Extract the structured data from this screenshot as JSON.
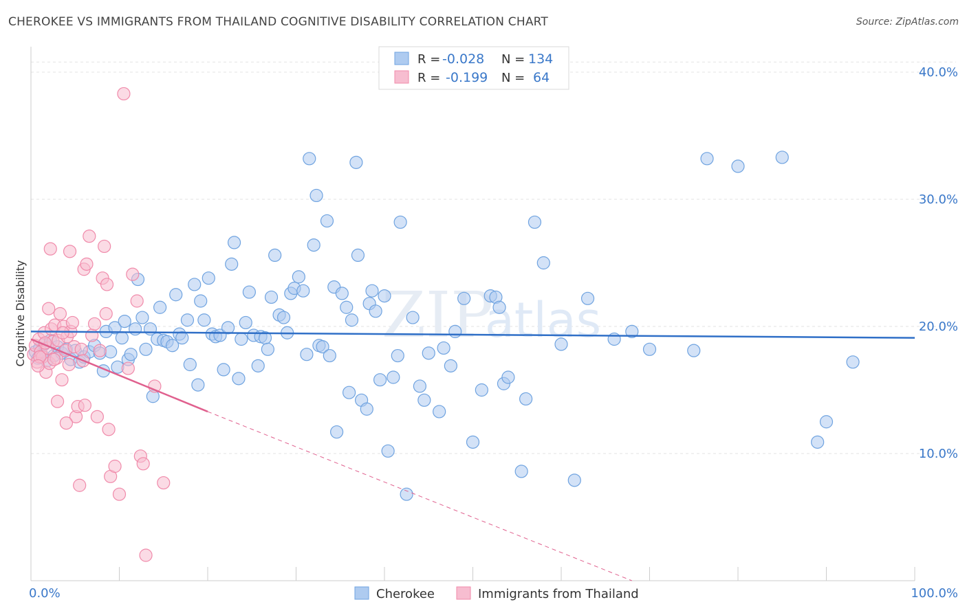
{
  "title": "CHEROKEE VS IMMIGRANTS FROM THAILAND COGNITIVE DISABILITY CORRELATION CHART",
  "source": "Source: ZipAtlas.com",
  "watermark": {
    "zip": "ZIP",
    "atlas": "atlas"
  },
  "chart_data": {
    "type": "scatter",
    "ylabel": "Cognitive Disability",
    "xlim": [
      0,
      100
    ],
    "ylim": [
      0,
      42
    ],
    "x_tick_labels": [
      "0.0%",
      "100.0%"
    ],
    "y_ticks": [
      10,
      20,
      30,
      40
    ],
    "y_tick_labels": [
      "10.0%",
      "20.0%",
      "30.0%",
      "40.0%"
    ],
    "grid": true,
    "legend_top": {
      "rows": [
        {
          "r_label": "R =",
          "r_value": "-0.028",
          "n_label": "N =",
          "n_value": "134"
        },
        {
          "r_label": "R =",
          "r_value": "-0.199",
          "n_label": "N =",
          "n_value": "64"
        }
      ]
    },
    "series": [
      {
        "name": "Cherokee",
        "color": "#6fa3e0",
        "fill": "#aecbf0",
        "line_color": "#2f6fc7",
        "trend": {
          "x": [
            0,
            100
          ],
          "y": [
            19.6,
            19.1
          ]
        },
        "points": [
          [
            0.5,
            18
          ],
          [
            0.8,
            17.5
          ],
          [
            1.0,
            18.3
          ],
          [
            1.2,
            17.8
          ],
          [
            1.5,
            18.6
          ],
          [
            1.8,
            17.3
          ],
          [
            2.2,
            18.9
          ],
          [
            2.6,
            17.7
          ],
          [
            3.0,
            18.4
          ],
          [
            3.5,
            17.9
          ],
          [
            4.0,
            18.2
          ],
          [
            4.5,
            17.4
          ],
          [
            5.0,
            18.1
          ],
          [
            5.5,
            17.2
          ],
          [
            6.0,
            17.6
          ],
          [
            6.6,
            18.0
          ],
          [
            7.2,
            18.5
          ],
          [
            7.8,
            17.9
          ],
          [
            8.2,
            16.5
          ],
          [
            8.5,
            19.6
          ],
          [
            9.0,
            18.0
          ],
          [
            9.5,
            19.9
          ],
          [
            9.8,
            16.8
          ],
          [
            10.3,
            19.1
          ],
          [
            10.6,
            20.4
          ],
          [
            11.0,
            17.4
          ],
          [
            11.3,
            17.8
          ],
          [
            11.8,
            19.8
          ],
          [
            12.1,
            23.7
          ],
          [
            12.6,
            20.7
          ],
          [
            13.0,
            18.2
          ],
          [
            13.5,
            19.8
          ],
          [
            13.8,
            14.5
          ],
          [
            14.3,
            19.0
          ],
          [
            14.6,
            21.5
          ],
          [
            15.0,
            18.9
          ],
          [
            15.4,
            18.8
          ],
          [
            16.0,
            18.5
          ],
          [
            16.4,
            22.5
          ],
          [
            16.8,
            19.4
          ],
          [
            17.1,
            19.1
          ],
          [
            17.7,
            20.5
          ],
          [
            18.0,
            17.0
          ],
          [
            18.5,
            23.3
          ],
          [
            18.9,
            15.4
          ],
          [
            19.2,
            22.0
          ],
          [
            19.6,
            20.5
          ],
          [
            20.1,
            23.8
          ],
          [
            20.5,
            19.4
          ],
          [
            20.9,
            19.2
          ],
          [
            21.4,
            19.3
          ],
          [
            21.8,
            16.6
          ],
          [
            22.3,
            19.9
          ],
          [
            22.7,
            24.9
          ],
          [
            23.0,
            26.6
          ],
          [
            23.5,
            15.9
          ],
          [
            23.8,
            19.0
          ],
          [
            24.3,
            20.3
          ],
          [
            24.7,
            22.7
          ],
          [
            25.2,
            19.3
          ],
          [
            25.7,
            16.9
          ],
          [
            26.0,
            19.2
          ],
          [
            26.5,
            19.1
          ],
          [
            26.8,
            18.2
          ],
          [
            27.2,
            22.3
          ],
          [
            27.6,
            25.6
          ],
          [
            28.1,
            20.9
          ],
          [
            28.6,
            20.7
          ],
          [
            29.0,
            19.5
          ],
          [
            29.4,
            22.6
          ],
          [
            29.8,
            23.0
          ],
          [
            30.3,
            23.9
          ],
          [
            30.8,
            22.8
          ],
          [
            31.2,
            17.8
          ],
          [
            31.5,
            33.2
          ],
          [
            32.0,
            26.4
          ],
          [
            32.6,
            18.5
          ],
          [
            33.0,
            18.4
          ],
          [
            33.5,
            28.3
          ],
          [
            33.8,
            17.7
          ],
          [
            34.3,
            23.1
          ],
          [
            34.6,
            11.7
          ],
          [
            35.2,
            22.6
          ],
          [
            35.7,
            21.5
          ],
          [
            36.0,
            14.8
          ],
          [
            36.3,
            20.5
          ],
          [
            37.0,
            25.6
          ],
          [
            37.4,
            14.2
          ],
          [
            38.0,
            13.5
          ],
          [
            38.3,
            21.8
          ],
          [
            38.6,
            22.8
          ],
          [
            39.0,
            21.2
          ],
          [
            39.5,
            15.8
          ],
          [
            40.0,
            22.4
          ],
          [
            40.4,
            10.2
          ],
          [
            41.0,
            16.0
          ],
          [
            41.5,
            17.7
          ],
          [
            41.8,
            28.2
          ],
          [
            42.5,
            6.8
          ],
          [
            43.2,
            20.7
          ],
          [
            44.0,
            15.3
          ],
          [
            44.5,
            14.2
          ],
          [
            45.0,
            17.9
          ],
          [
            46.2,
            13.3
          ],
          [
            46.7,
            18.3
          ],
          [
            47.5,
            16.9
          ],
          [
            48.0,
            19.6
          ],
          [
            49.0,
            22.2
          ],
          [
            50.0,
            10.9
          ],
          [
            51.0,
            15.0
          ],
          [
            52.0,
            22.4
          ],
          [
            52.6,
            22.3
          ],
          [
            53.0,
            21.5
          ],
          [
            53.5,
            15.5
          ],
          [
            54.0,
            16.0
          ],
          [
            55.5,
            8.6
          ],
          [
            56.0,
            14.3
          ],
          [
            57.0,
            28.2
          ],
          [
            58.0,
            25.0
          ],
          [
            60.0,
            18.6
          ],
          [
            61.5,
            7.9
          ],
          [
            63.0,
            22.2
          ],
          [
            66.0,
            19.0
          ],
          [
            68.0,
            19.6
          ],
          [
            70.0,
            18.2
          ],
          [
            75.0,
            18.1
          ],
          [
            76.5,
            33.2
          ],
          [
            80.0,
            32.6
          ],
          [
            85.0,
            33.3
          ],
          [
            89.0,
            10.9
          ],
          [
            90.0,
            12.5
          ],
          [
            93.0,
            17.2
          ],
          [
            36.8,
            32.9
          ],
          [
            32.3,
            30.3
          ]
        ]
      },
      {
        "name": "Immigrants from Thailand",
        "color": "#f08aaa",
        "fill": "#f7bdd0",
        "line_color": "#e0608e",
        "trend": {
          "x": [
            0,
            20
          ],
          "y": [
            19.0,
            13.3
          ]
        },
        "trend_dashed": {
          "x": [
            20,
            68
          ],
          "y": [
            13.3,
            0
          ]
        },
        "points": [
          [
            0.3,
            17.8
          ],
          [
            0.5,
            18.5
          ],
          [
            0.7,
            17.2
          ],
          [
            0.9,
            19.0
          ],
          [
            1.1,
            18.0
          ],
          [
            1.3,
            17.6
          ],
          [
            1.5,
            19.5
          ],
          [
            1.7,
            16.4
          ],
          [
            1.9,
            18.3
          ],
          [
            2.1,
            17.1
          ],
          [
            2.3,
            19.8
          ],
          [
            2.5,
            18.8
          ],
          [
            2.7,
            20.1
          ],
          [
            2.9,
            17.5
          ],
          [
            3.1,
            18.9
          ],
          [
            3.3,
            21.0
          ],
          [
            3.5,
            15.8
          ],
          [
            3.7,
            20.0
          ],
          [
            3.9,
            18.1
          ],
          [
            4.1,
            19.2
          ],
          [
            4.3,
            17.0
          ],
          [
            4.5,
            19.6
          ],
          [
            4.7,
            20.3
          ],
          [
            4.9,
            18.4
          ],
          [
            5.1,
            12.9
          ],
          [
            5.3,
            13.7
          ],
          [
            5.5,
            7.5
          ],
          [
            5.7,
            18.2
          ],
          [
            6.0,
            24.5
          ],
          [
            6.3,
            24.9
          ],
          [
            6.6,
            27.1
          ],
          [
            6.9,
            19.3
          ],
          [
            7.2,
            20.2
          ],
          [
            7.5,
            12.9
          ],
          [
            7.8,
            18.1
          ],
          [
            8.1,
            23.8
          ],
          [
            8.3,
            26.3
          ],
          [
            8.5,
            21.0
          ],
          [
            8.8,
            11.9
          ],
          [
            9.0,
            8.2
          ],
          [
            9.5,
            9.0
          ],
          [
            10.0,
            6.8
          ],
          [
            10.5,
            38.3
          ],
          [
            11.0,
            16.7
          ],
          [
            11.5,
            24.1
          ],
          [
            12.0,
            22.0
          ],
          [
            12.4,
            9.8
          ],
          [
            12.7,
            9.2
          ],
          [
            13.0,
            2.0
          ],
          [
            14.0,
            15.3
          ],
          [
            15.0,
            7.7
          ],
          [
            2.0,
            21.4
          ],
          [
            3.0,
            14.1
          ],
          [
            4.0,
            12.4
          ],
          [
            6.1,
            13.8
          ],
          [
            1.0,
            17.6
          ],
          [
            1.6,
            18.7
          ],
          [
            2.6,
            17.4
          ],
          [
            3.6,
            19.5
          ],
          [
            0.8,
            16.9
          ],
          [
            5.9,
            17.3
          ],
          [
            8.6,
            23.3
          ],
          [
            2.2,
            26.1
          ],
          [
            4.4,
            25.9
          ]
        ]
      }
    ]
  },
  "legend_bottom": [
    "Cherokee",
    "Immigrants from Thailand"
  ]
}
